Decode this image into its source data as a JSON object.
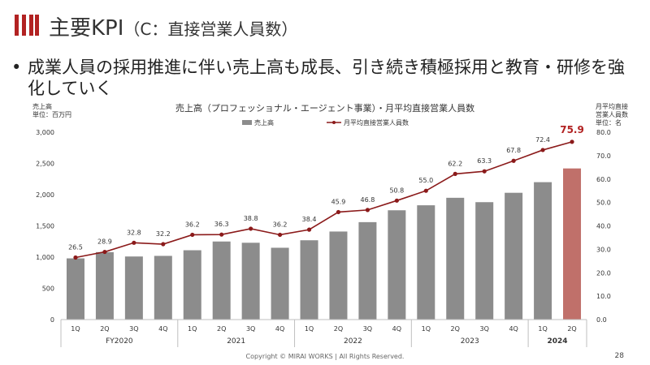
{
  "title": "主要KPI",
  "title_sub": "（C：直接営業人員数）",
  "bullet": "成業人員の採用推進に伴い売上高も成長、引き続き積極採用と教育・研修を強化していく",
  "left_axis_caption": [
    "売上高",
    "単位：百万円"
  ],
  "right_axis_caption": [
    "月平均直接",
    "営業人員数",
    "単位：名"
  ],
  "footer": "Copyright © MIRAI WORKS | All Rights Reserved.",
  "page_number": "28",
  "colors": {
    "bar": "#8c8c8c",
    "bar_highlight": "#c0706a",
    "line": "#8b1a1a",
    "accent": "#b22222"
  },
  "chart_data": {
    "type": "bar+line",
    "title": "売上高（プロフェッショナル・エージェント事業）・月平均直接営業人員数",
    "legend": [
      "売上高",
      "月平均直接営業人員数"
    ],
    "categories": [
      "1Q",
      "2Q",
      "3Q",
      "4Q",
      "1Q",
      "2Q",
      "3Q",
      "4Q",
      "1Q",
      "2Q",
      "3Q",
      "4Q",
      "1Q",
      "2Q",
      "3Q",
      "4Q",
      "1Q",
      "2Q"
    ],
    "groups": [
      {
        "label": "FY2020",
        "span": 4
      },
      {
        "label": "2021",
        "span": 4
      },
      {
        "label": "2022",
        "span": 4
      },
      {
        "label": "2023",
        "span": 4
      },
      {
        "label": "2024",
        "span": 2
      }
    ],
    "series": [
      {
        "name": "売上高",
        "kind": "bar",
        "axis": "left",
        "values": [
          980,
          1080,
          1010,
          1020,
          1110,
          1250,
          1230,
          1150,
          1270,
          1410,
          1560,
          1750,
          1830,
          1950,
          1880,
          2030,
          2200,
          2420
        ]
      },
      {
        "name": "月平均直接営業人員数",
        "kind": "line",
        "axis": "right",
        "values": [
          26.5,
          28.9,
          32.8,
          32.2,
          36.2,
          36.3,
          38.8,
          36.2,
          38.4,
          45.9,
          46.8,
          50.8,
          55.0,
          62.2,
          63.3,
          67.8,
          72.4,
          75.9
        ]
      }
    ],
    "y_left": {
      "min": 0,
      "max": 3000,
      "ticks": [
        "0",
        "500",
        "1,000",
        "1,500",
        "2,000",
        "2,500",
        "3,000"
      ]
    },
    "y_right": {
      "min": 0,
      "max": 80,
      "ticks": [
        "0.0",
        "10.0",
        "20.0",
        "30.0",
        "40.0",
        "50.0",
        "60.0",
        "70.0",
        "80.0"
      ]
    },
    "line_labels": [
      "26.5",
      "28.9",
      "32.8",
      "32.2",
      "36.2",
      "36.3",
      "38.8",
      "36.2",
      "38.4",
      "45.9",
      "46.8",
      "50.8",
      "55.0",
      "62.2",
      "63.3",
      "67.8",
      "72.4",
      "75.9"
    ]
  }
}
